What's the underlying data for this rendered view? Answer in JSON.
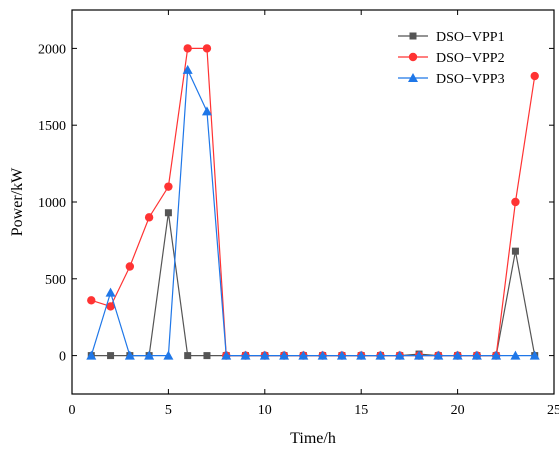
{
  "chart_data": {
    "type": "line",
    "title": "",
    "xlabel": "Time/h",
    "ylabel": "Power/kW",
    "xlim": [
      0,
      25
    ],
    "ylim": [
      -250,
      2250
    ],
    "xticks": [
      0,
      5,
      10,
      15,
      20,
      25
    ],
    "yticks": [
      0,
      500,
      1000,
      1500,
      2000
    ],
    "grid": false,
    "legend_position": "top-right",
    "x": [
      1,
      2,
      3,
      4,
      5,
      6,
      7,
      8,
      9,
      10,
      11,
      12,
      13,
      14,
      15,
      16,
      17,
      18,
      19,
      20,
      21,
      22,
      23,
      24
    ],
    "series": [
      {
        "name": "DSO−VPP1",
        "color": "#555555",
        "marker": "square",
        "values": [
          0,
          0,
          0,
          0,
          930,
          0,
          0,
          0,
          0,
          0,
          0,
          0,
          0,
          0,
          0,
          0,
          0,
          10,
          0,
          0,
          0,
          0,
          680,
          0
        ]
      },
      {
        "name": "DSO−VPP2",
        "color": "#ff3333",
        "marker": "circle",
        "values": [
          360,
          320,
          580,
          900,
          1100,
          2000,
          2000,
          0,
          0,
          0,
          0,
          0,
          0,
          0,
          0,
          0,
          0,
          0,
          0,
          0,
          0,
          0,
          1000,
          1820
        ]
      },
      {
        "name": "DSO−VPP3",
        "color": "#1f77e8",
        "marker": "triangle",
        "values": [
          0,
          410,
          0,
          0,
          0,
          1860,
          1590,
          0,
          0,
          0,
          0,
          0,
          0,
          0,
          0,
          0,
          0,
          0,
          0,
          0,
          0,
          0,
          0,
          0
        ]
      }
    ]
  }
}
